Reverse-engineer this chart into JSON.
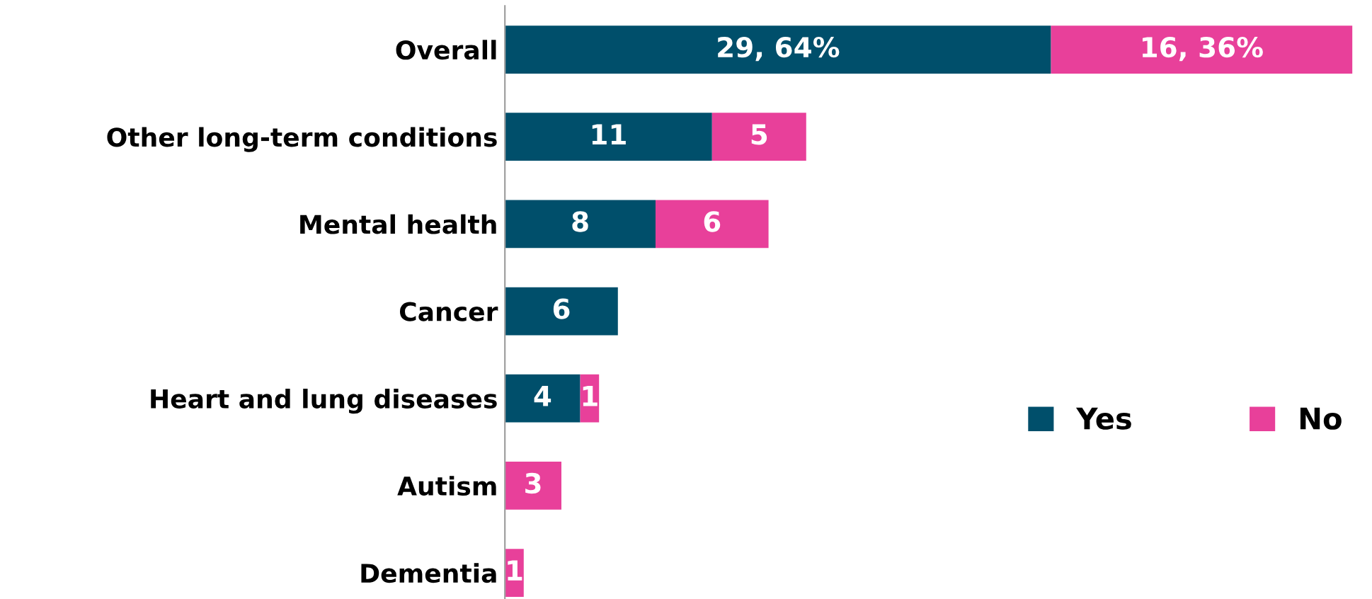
{
  "chart_data": {
    "type": "bar",
    "orientation": "horizontal",
    "stacked": true,
    "categories": [
      "Overall",
      "Other long-term conditions",
      "Mental health",
      "Cancer",
      "Heart and lung diseases",
      "Autism",
      "Dementia"
    ],
    "series": [
      {
        "name": "Yes",
        "color": "#004f6b",
        "values": [
          29,
          11,
          8,
          6,
          4,
          null,
          null
        ],
        "value_labels": [
          "29, 64%",
          "11",
          "8",
          "6",
          "4",
          null,
          null
        ]
      },
      {
        "name": "No",
        "color": "#e8409a",
        "values": [
          16,
          5,
          6,
          null,
          1,
          3,
          1
        ],
        "value_labels": [
          "16, 36%",
          "5",
          "6",
          null,
          "1",
          "3",
          "1"
        ]
      }
    ],
    "legend": "right",
    "grid": false,
    "tick_labels": "y"
  }
}
